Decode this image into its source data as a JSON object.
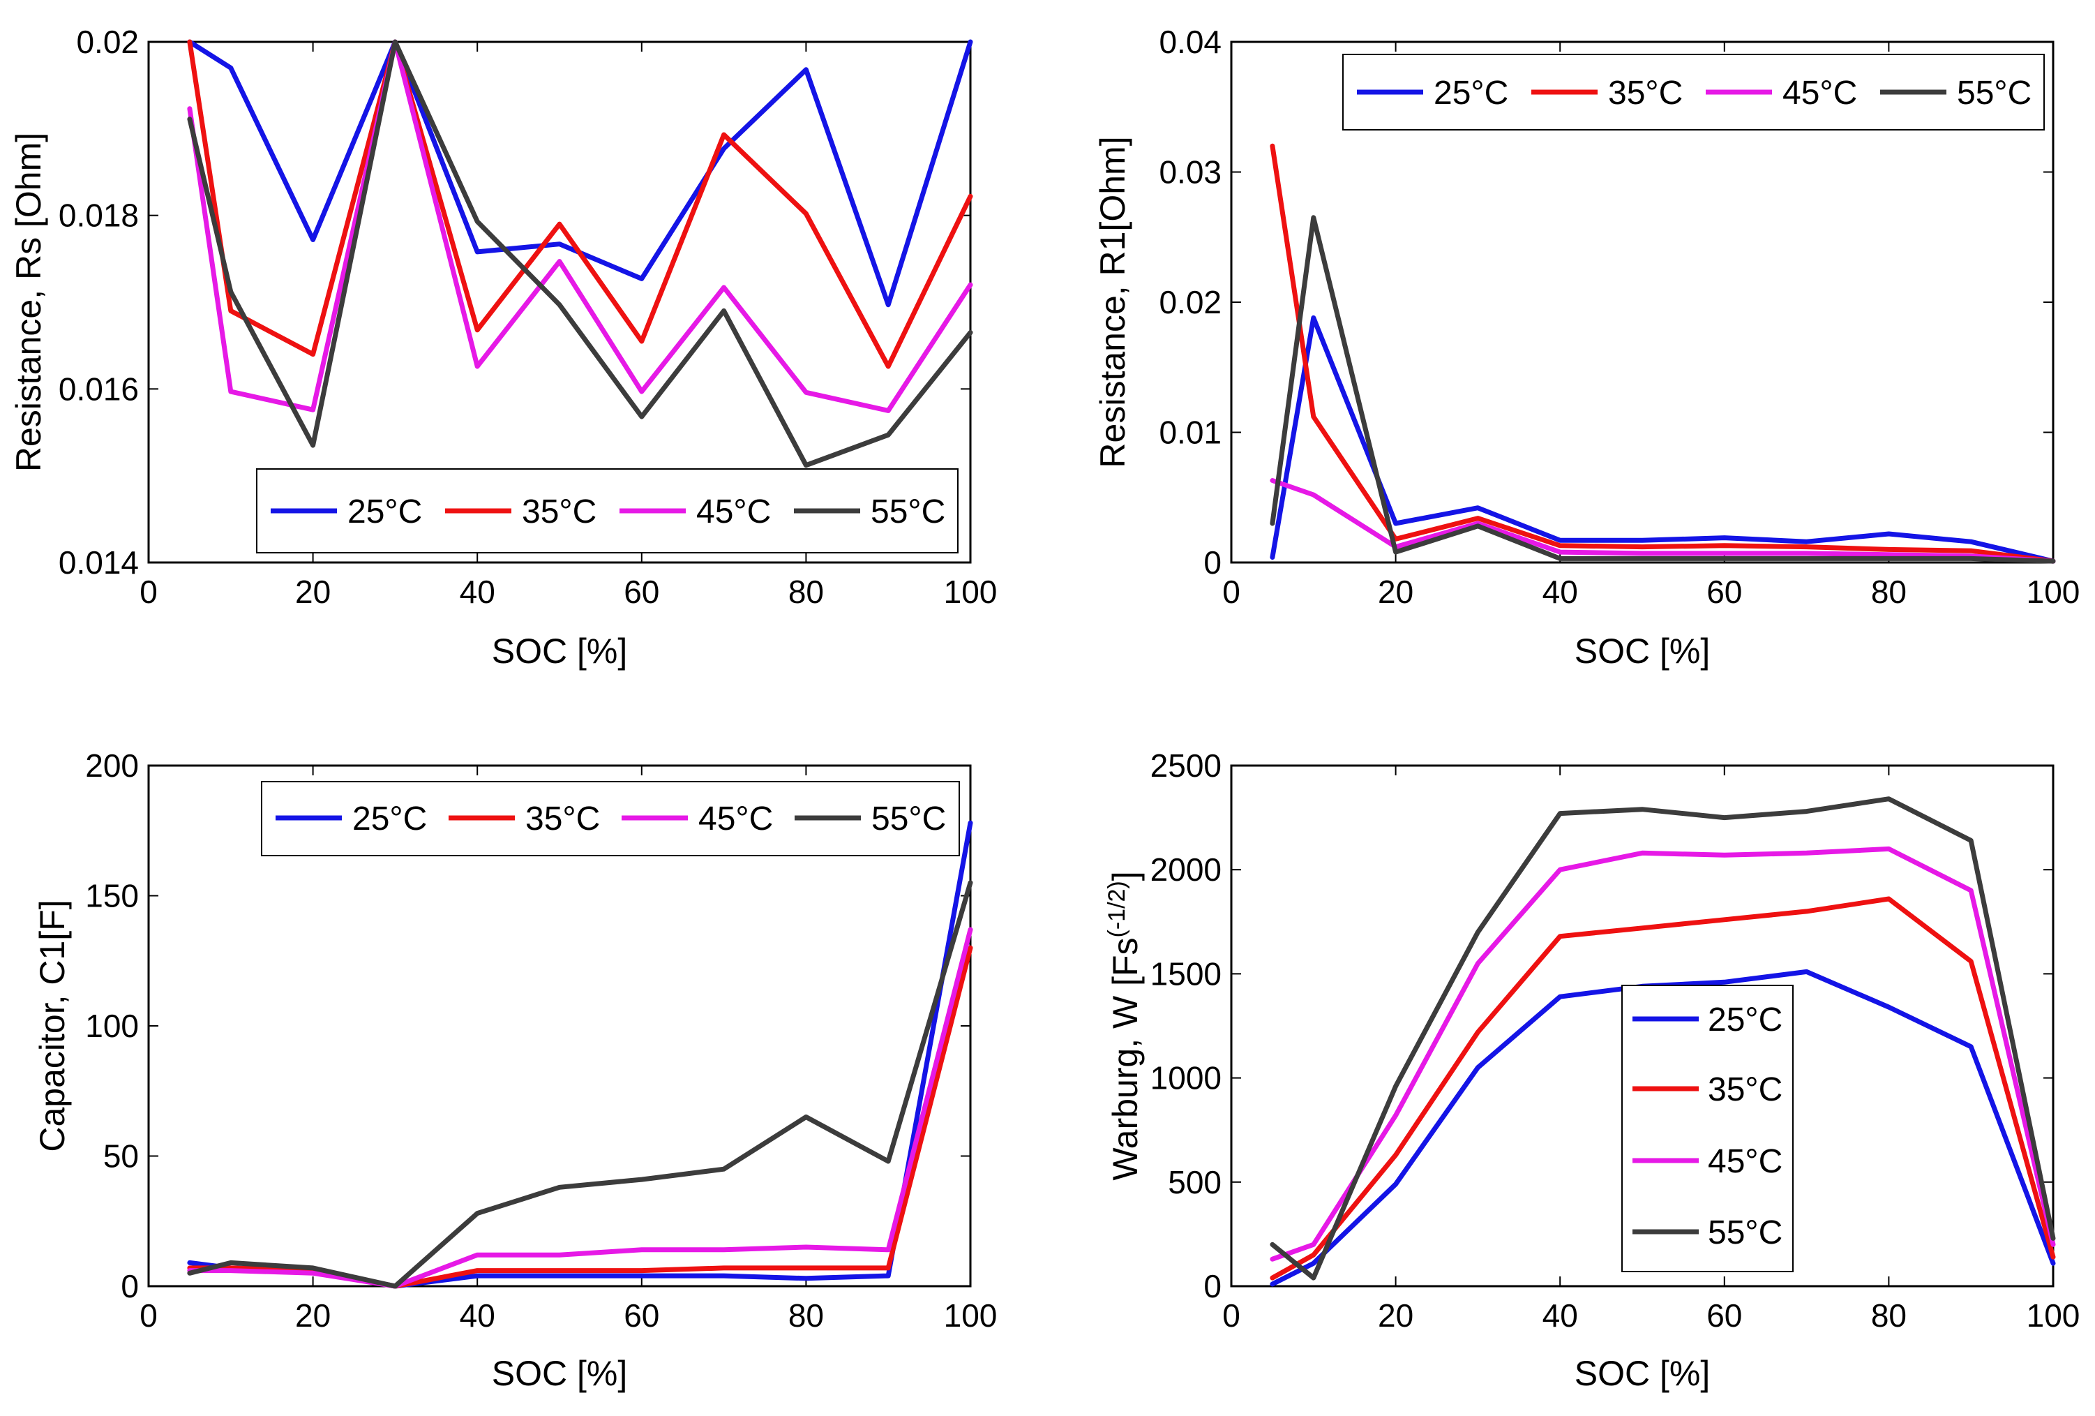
{
  "chart_data": [
    {
      "type": "line",
      "title": "",
      "xlabel": "SOC [%]",
      "ylabel": "Resistance, Rs [Ohm]",
      "xlim": [
        0,
        100
      ],
      "ylim": [
        0.014,
        0.02
      ],
      "xticks": [
        0,
        20,
        40,
        60,
        80,
        100
      ],
      "xtick_labels": [
        "0",
        "20",
        "40",
        "60",
        "80",
        "100"
      ],
      "yticks": [
        0.014,
        0.016,
        0.018,
        0.02
      ],
      "ytick_labels": [
        "0.014",
        "0.016",
        "0.018",
        "0.02"
      ],
      "legend": "bottom-right-horizontal",
      "grid": false,
      "series": [
        {
          "name": "25°C",
          "color": "#1414e6",
          "x": [
            5,
            10,
            20,
            30,
            40,
            50,
            60,
            70,
            80,
            90,
            100
          ],
          "values": [
            0.02,
            0.0197,
            0.01772,
            0.02,
            0.01758,
            0.01767,
            0.01727,
            0.01877,
            0.01968,
            0.01697,
            0.02
          ]
        },
        {
          "name": "35°C",
          "color": "#ee1111",
          "x": [
            5,
            10,
            20,
            30,
            40,
            50,
            60,
            70,
            80,
            90,
            100
          ],
          "values": [
            0.02,
            0.0169,
            0.0164,
            0.02,
            0.01668,
            0.0179,
            0.01655,
            0.01893,
            0.01802,
            0.01626,
            0.01822
          ]
        },
        {
          "name": "45°C",
          "color": "#e619e6",
          "x": [
            5,
            10,
            20,
            30,
            40,
            50,
            60,
            70,
            80,
            90,
            100
          ],
          "values": [
            0.01923,
            0.01597,
            0.01576,
            0.02,
            0.01626,
            0.01747,
            0.01597,
            0.01717,
            0.01596,
            0.01575,
            0.0172
          ]
        },
        {
          "name": "55°C",
          "color": "#3c3c3c",
          "x": [
            5,
            10,
            20,
            30,
            40,
            50,
            60,
            70,
            80,
            90,
            100
          ],
          "values": [
            0.01911,
            0.01712,
            0.01535,
            0.02,
            0.01793,
            0.01697,
            0.01568,
            0.0169,
            0.01512,
            0.01547,
            0.01665
          ]
        }
      ]
    },
    {
      "type": "line",
      "title": "",
      "xlabel": "SOC [%]",
      "ylabel": "Resistance, R1[Ohm]",
      "xlim": [
        0,
        100
      ],
      "ylim": [
        0,
        0.04
      ],
      "xticks": [
        0,
        20,
        40,
        60,
        80,
        100
      ],
      "xtick_labels": [
        "0",
        "20",
        "40",
        "60",
        "80",
        "100"
      ],
      "yticks": [
        0,
        0.01,
        0.02,
        0.03,
        0.04
      ],
      "ytick_labels": [
        "0",
        "0.01",
        "0.02",
        "0.03",
        "0.04"
      ],
      "legend": "top-right-horizontal",
      "grid": false,
      "series": [
        {
          "name": "25°C",
          "color": "#1414e6",
          "x": [
            5,
            10,
            20,
            30,
            40,
            50,
            60,
            70,
            80,
            90,
            100
          ],
          "values": [
            0.0004,
            0.0188,
            0.003,
            0.0042,
            0.0017,
            0.0017,
            0.0019,
            0.0016,
            0.0022,
            0.0016,
            0.0001
          ]
        },
        {
          "name": "35°C",
          "color": "#ee1111",
          "x": [
            5,
            10,
            20,
            30,
            40,
            50,
            60,
            70,
            80,
            90,
            100
          ],
          "values": [
            0.032,
            0.0112,
            0.0018,
            0.0034,
            0.0013,
            0.0012,
            0.0013,
            0.0012,
            0.001,
            0.0009,
            0.0001
          ]
        },
        {
          "name": "45°C",
          "color": "#e619e6",
          "x": [
            5,
            10,
            20,
            30,
            40,
            50,
            60,
            70,
            80,
            90,
            100
          ],
          "values": [
            0.0063,
            0.0052,
            0.0012,
            0.003,
            0.0008,
            0.0007,
            0.0007,
            0.0007,
            0.0006,
            0.0005,
            0.0001
          ]
        },
        {
          "name": "55°C",
          "color": "#3c3c3c",
          "x": [
            5,
            10,
            20,
            30,
            40,
            50,
            60,
            70,
            80,
            90,
            100
          ],
          "values": [
            0.003,
            0.0265,
            0.0008,
            0.0028,
            0.0003,
            0.0003,
            0.0003,
            0.0003,
            0.0003,
            0.0003,
            0.0001
          ]
        }
      ]
    },
    {
      "type": "line",
      "title": "",
      "xlabel": "SOC [%]",
      "ylabel": "Capacitor, C1[F]",
      "xlim": [
        0,
        100
      ],
      "ylim": [
        0,
        200
      ],
      "xticks": [
        0,
        20,
        40,
        60,
        80,
        100
      ],
      "xtick_labels": [
        "0",
        "20",
        "40",
        "60",
        "80",
        "100"
      ],
      "yticks": [
        0,
        50,
        100,
        150,
        200
      ],
      "ytick_labels": [
        "0",
        "50",
        "100",
        "150",
        "200"
      ],
      "legend": "top-right-horizontal",
      "grid": false,
      "series": [
        {
          "name": "25°C",
          "color": "#1414e6",
          "x": [
            5,
            10,
            20,
            30,
            40,
            50,
            60,
            70,
            80,
            90,
            100
          ],
          "values": [
            9,
            7,
            6,
            0,
            4,
            4,
            4,
            4,
            3,
            4,
            178
          ]
        },
        {
          "name": "35°C",
          "color": "#ee1111",
          "x": [
            5,
            10,
            20,
            30,
            40,
            50,
            60,
            70,
            80,
            90,
            100
          ],
          "values": [
            7,
            7,
            6,
            0,
            6,
            6,
            6,
            7,
            7,
            7,
            130
          ]
        },
        {
          "name": "45°C",
          "color": "#e619e6",
          "x": [
            5,
            10,
            20,
            30,
            40,
            50,
            60,
            70,
            80,
            90,
            100
          ],
          "values": [
            6,
            6,
            5,
            0,
            12,
            12,
            14,
            14,
            15,
            14,
            137
          ]
        },
        {
          "name": "55°C",
          "color": "#3c3c3c",
          "x": [
            5,
            10,
            20,
            30,
            40,
            50,
            60,
            70,
            80,
            90,
            100
          ],
          "values": [
            5,
            9,
            7,
            0,
            28,
            38,
            41,
            45,
            65,
            48,
            155
          ]
        }
      ]
    },
    {
      "type": "line",
      "title": "",
      "xlabel": "SOC [%]",
      "ylabel_main": "Warburg, W [Fs",
      "ylabel_exponent": "(-1/2)",
      "ylabel_close": "]",
      "xlim": [
        0,
        100
      ],
      "ylim": [
        0,
        2500
      ],
      "xticks": [
        0,
        20,
        40,
        60,
        80,
        100
      ],
      "xtick_labels": [
        "0",
        "20",
        "40",
        "60",
        "80",
        "100"
      ],
      "yticks": [
        0,
        500,
        1000,
        1500,
        2000,
        2500
      ],
      "ytick_labels": [
        "0",
        "500",
        "1000",
        "1500",
        "2000",
        "2500"
      ],
      "legend": "lower-center-vertical",
      "grid": false,
      "series": [
        {
          "name": "25°C",
          "color": "#1414e6",
          "x": [
            5,
            10,
            20,
            30,
            40,
            50,
            60,
            70,
            80,
            90,
            100
          ],
          "values": [
            10,
            110,
            490,
            1050,
            1390,
            1440,
            1460,
            1510,
            1340,
            1150,
            110
          ]
        },
        {
          "name": "35°C",
          "color": "#ee1111",
          "x": [
            5,
            10,
            20,
            30,
            40,
            50,
            60,
            70,
            80,
            90,
            100
          ],
          "values": [
            40,
            150,
            630,
            1220,
            1680,
            1720,
            1760,
            1800,
            1860,
            1560,
            140
          ]
        },
        {
          "name": "45°C",
          "color": "#e619e6",
          "x": [
            5,
            10,
            20,
            30,
            40,
            50,
            60,
            70,
            80,
            90,
            100
          ],
          "values": [
            130,
            200,
            820,
            1550,
            2000,
            2080,
            2070,
            2080,
            2100,
            1900,
            200
          ]
        },
        {
          "name": "55°C",
          "color": "#3c3c3c",
          "x": [
            5,
            10,
            20,
            30,
            40,
            50,
            60,
            70,
            80,
            90,
            100
          ],
          "values": [
            200,
            40,
            960,
            1700,
            2270,
            2290,
            2250,
            2280,
            2340,
            2140,
            230
          ]
        }
      ]
    }
  ]
}
